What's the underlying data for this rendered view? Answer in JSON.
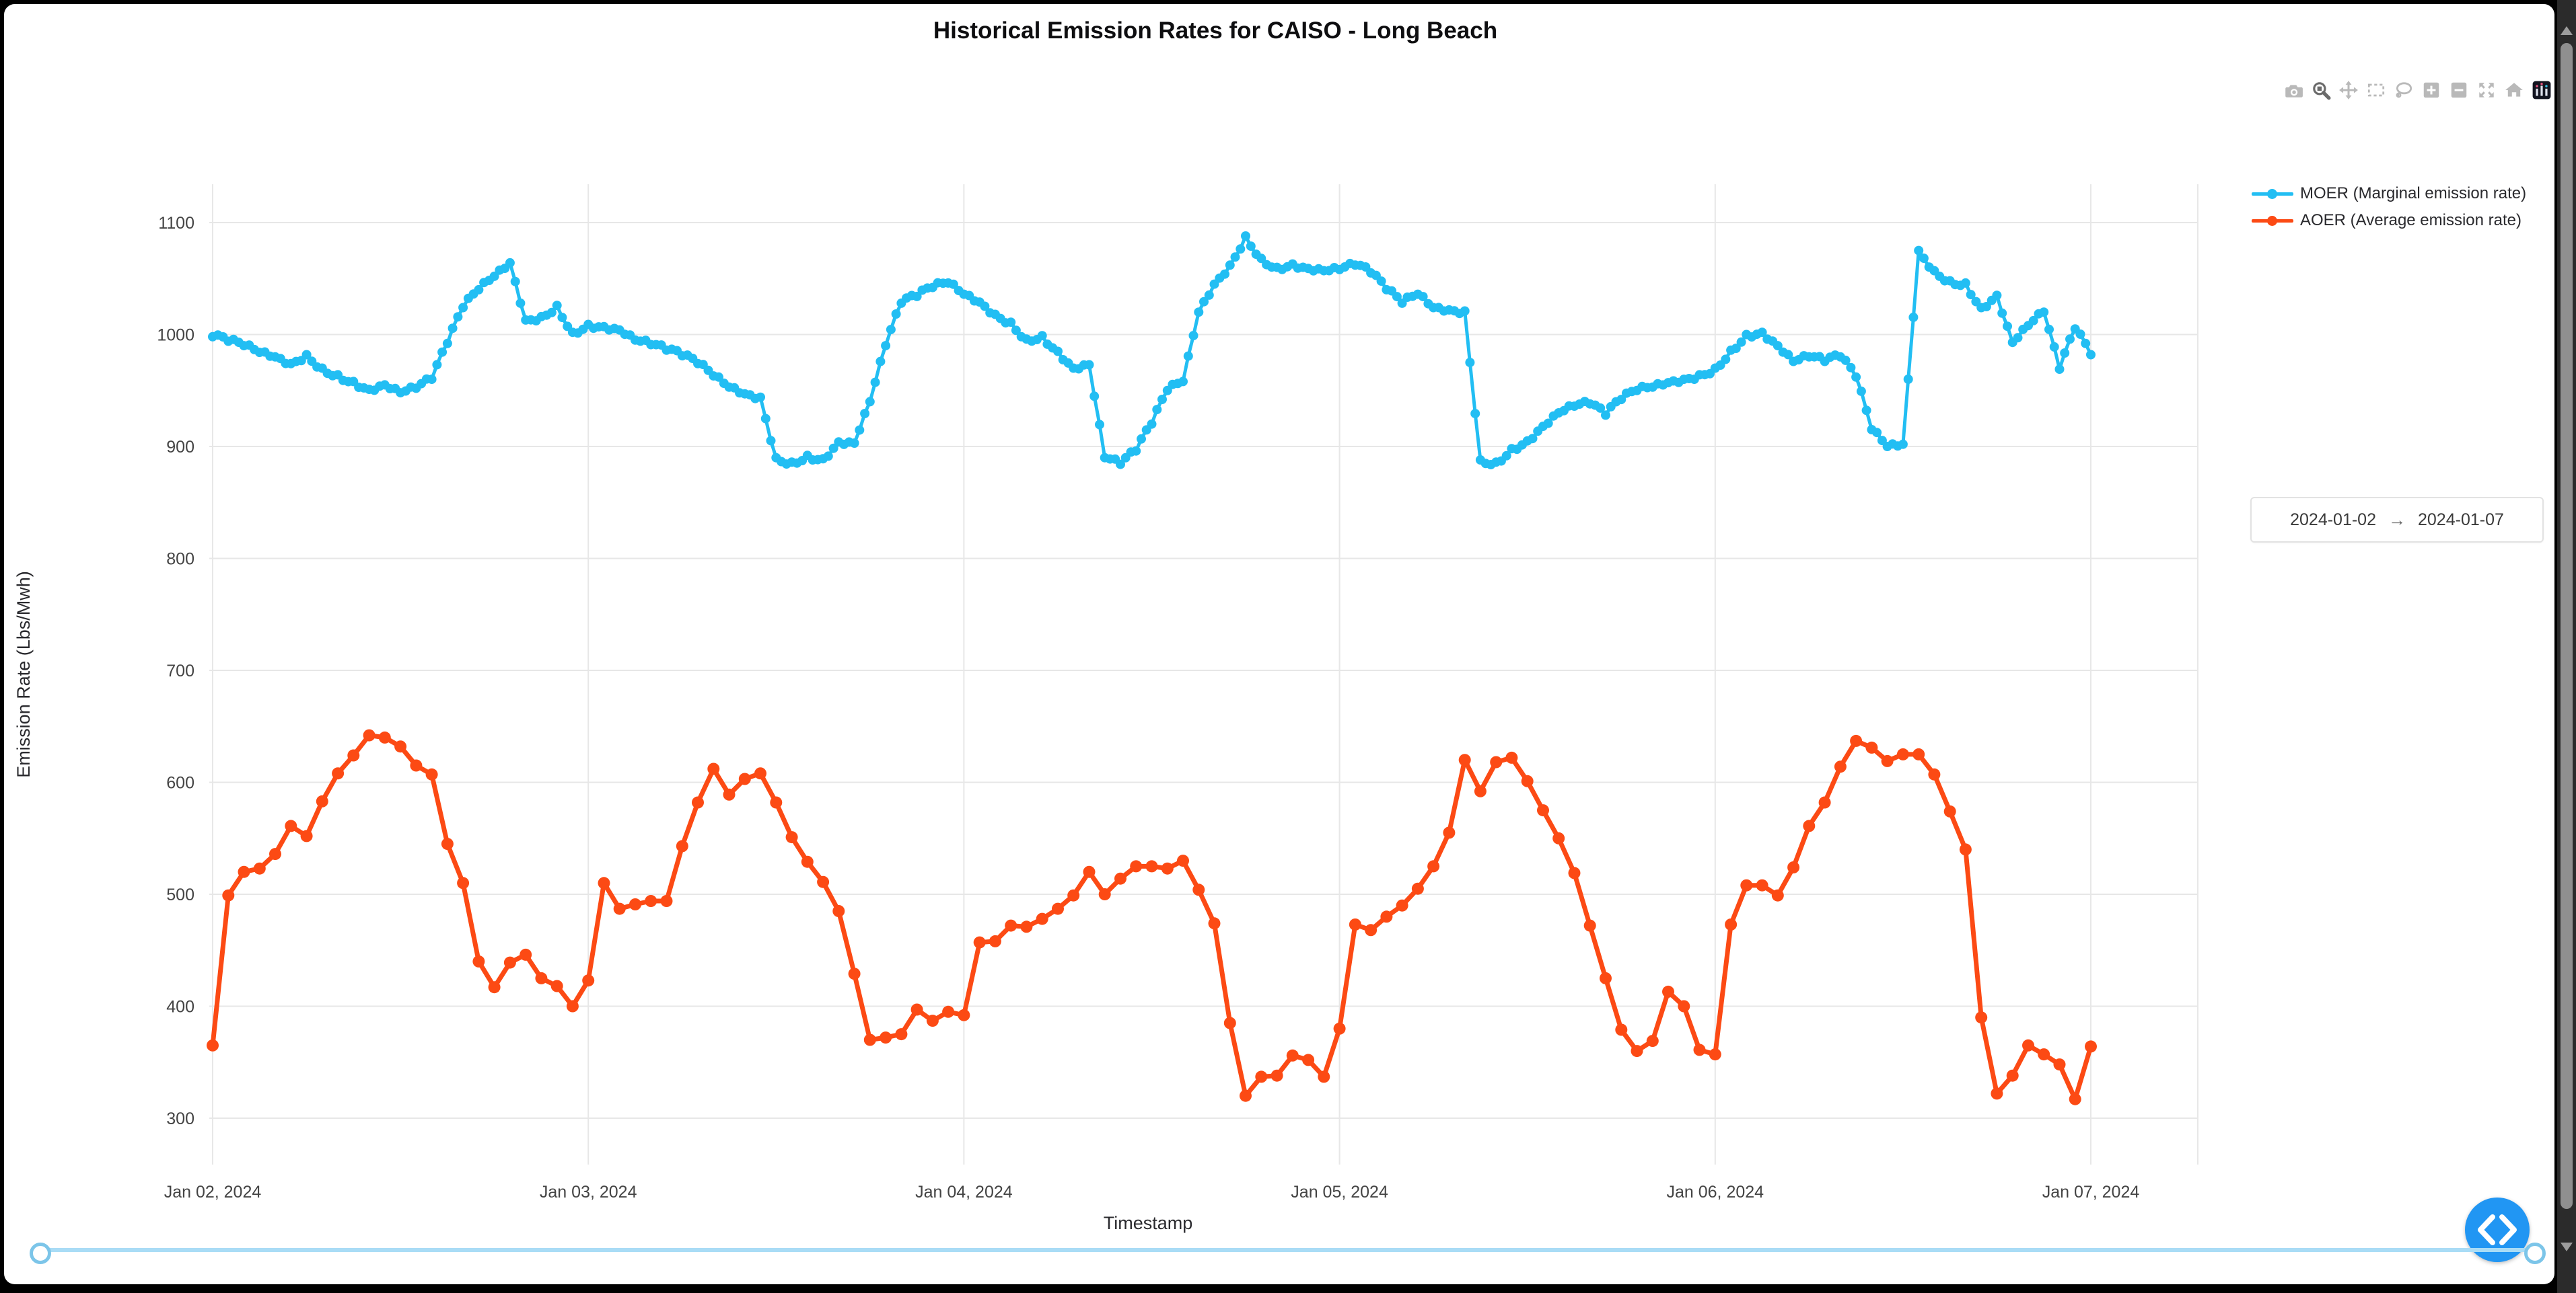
{
  "header": {
    "title": "Historical Emission Rates for CAISO - Long Beach"
  },
  "modebar": {
    "icons": [
      {
        "name": "camera-icon",
        "action": "download-plot-as-png",
        "active": false
      },
      {
        "name": "zoom-icon",
        "action": "zoom",
        "active": true
      },
      {
        "name": "pan-icon",
        "action": "pan",
        "active": false
      },
      {
        "name": "box-select-icon",
        "action": "box-select",
        "active": false
      },
      {
        "name": "lasso-select-icon",
        "action": "lasso-select",
        "active": false
      },
      {
        "name": "zoom-in-icon",
        "action": "zoom-in",
        "active": false
      },
      {
        "name": "zoom-out-icon",
        "action": "zoom-out",
        "active": false
      },
      {
        "name": "autoscale-icon",
        "action": "autoscale",
        "active": false
      },
      {
        "name": "home-icon",
        "action": "reset-axes",
        "active": false
      },
      {
        "name": "plotly-logo-icon",
        "action": "plotly-logo",
        "active": false
      }
    ]
  },
  "legend": {
    "items": [
      {
        "label": "MOER (Marginal emission rate)",
        "color": "#22bef3"
      },
      {
        "label": "AOER (Average emission rate)",
        "color": "#fc4a14"
      }
    ]
  },
  "date_range": {
    "start": "2024-01-02",
    "arrow": "→",
    "end": "2024-01-07"
  },
  "chart_data": {
    "type": "line",
    "title": "Historical Emission Rates for CAISO - Long Beach",
    "xlabel": "Timestamp",
    "ylabel": "Emission Rate (Lbs/Mwh)",
    "grid": true,
    "legend_position": "right-top",
    "ylim": [
      260,
      1135
    ],
    "y_ticks": [
      300,
      400,
      500,
      600,
      700,
      800,
      900,
      1000,
      1100
    ],
    "x_start": "2024-01-02 00:00",
    "x_step_hours": 1,
    "x_ticks": [
      {
        "t": 0,
        "label": "Jan 02, 2024"
      },
      {
        "t": 24,
        "label": "Jan 03, 2024"
      },
      {
        "t": 48,
        "label": "Jan 04, 2024"
      },
      {
        "t": 72,
        "label": "Jan 05, 2024"
      },
      {
        "t": 96,
        "label": "Jan 06, 2024"
      },
      {
        "t": 120,
        "label": "Jan 07, 2024"
      }
    ],
    "series": [
      {
        "name": "MOER (Marginal emission rate)",
        "color": "#22bef3",
        "line_width": 5,
        "marker_size": 7,
        "subsample": 3,
        "values": [
          998,
          994,
          990,
          984,
          980,
          974,
          982,
          970,
          964,
          958,
          951,
          955,
          948,
          952,
          960,
          992,
          1024,
          1040,
          1052,
          1064,
          1013,
          1016,
          1026,
          1002,
          1009,
          1007,
          1004,
          995,
          991,
          986,
          981,
          974,
          963,
          953,
          947,
          944,
          890,
          886,
          892,
          889,
          904,
          903,
          940,
          990,
          1028,
          1034,
          1042,
          1046,
          1036,
          1029,
          1018,
          1011,
          996,
          999,
          985,
          970,
          973,
          890,
          884,
          896,
          920,
          950,
          958,
          1020,
          1045,
          1062,
          1088,
          1068,
          1060,
          1063,
          1059,
          1057,
          1058,
          1062,
          1055,
          1040,
          1028,
          1036,
          1024,
          1022,
          1021,
          888,
          886,
          898,
          905,
          918,
          930,
          936,
          938,
          928,
          942,
          950,
          953,
          957,
          960,
          964,
          970,
          986,
          1000,
          1002,
          990,
          976,
          980,
          976,
          980,
          962,
          915,
          900,
          902,
          1075,
          1057,
          1048,
          1046,
          1024,
          1035,
          993,
          1008,
          1020,
          969,
          1005,
          982
        ]
      },
      {
        "name": "AOER (Average emission rate)",
        "color": "#fc4a14",
        "line_width": 7,
        "marker_size": 9,
        "subsample": 1,
        "values": [
          365,
          499,
          520,
          523,
          536,
          561,
          552,
          583,
          608,
          624,
          642,
          640,
          632,
          615,
          607,
          545,
          510,
          440,
          417,
          439,
          446,
          425,
          418,
          400,
          423,
          510,
          487,
          491,
          494,
          494,
          543,
          582,
          612,
          589,
          603,
          608,
          582,
          551,
          529,
          511,
          485,
          429,
          370,
          372,
          375,
          397,
          387,
          395,
          392,
          457,
          458,
          472,
          471,
          478,
          487,
          499,
          520,
          500,
          514,
          525,
          525,
          523,
          530,
          504,
          474,
          385,
          320,
          337,
          338,
          356,
          352,
          337,
          380,
          473,
          468,
          480,
          490,
          505,
          525,
          555,
          620,
          592,
          618,
          622,
          601,
          575,
          550,
          519,
          472,
          425,
          379,
          360,
          369,
          413,
          400,
          361,
          357,
          473,
          508,
          508,
          499,
          524,
          561,
          582,
          614,
          637,
          631,
          619,
          625,
          625,
          607,
          574,
          540,
          390,
          322,
          338,
          365,
          357,
          348,
          317,
          364
        ]
      }
    ]
  }
}
